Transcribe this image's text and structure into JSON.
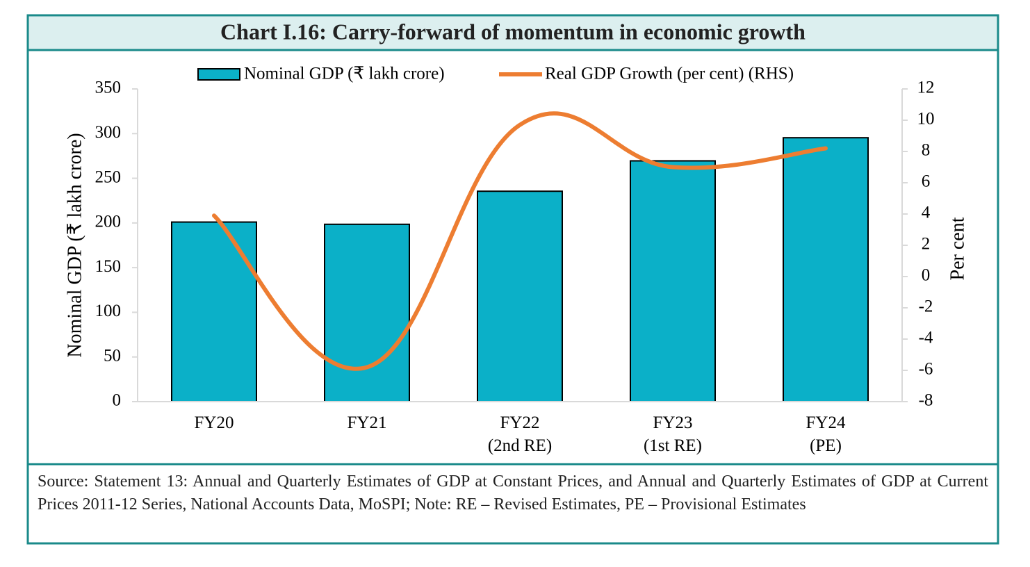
{
  "chart_data": {
    "type": "bar_line",
    "title": "Chart I.16: Carry-forward of momentum in economic growth",
    "categories": [
      "FY20",
      "FY21",
      "FY22\n(2nd RE)",
      "FY23\n(1st RE)",
      "FY24\n(PE)"
    ],
    "series": [
      {
        "name": "Nominal GDP (₹ lakh crore)",
        "type": "bar",
        "color": "#0bb0c8",
        "values": [
          201,
          198.5,
          235.5,
          269.5,
          295.4
        ]
      },
      {
        "name": "Real GDP Growth (per cent) (RHS)",
        "type": "line",
        "axis": "y2",
        "color": "#ed7d31",
        "values": [
          3.9,
          -5.8,
          9.7,
          7.0,
          8.2
        ]
      }
    ],
    "ylabel": "Nominal GDP (₹ lakh crore)",
    "y2label": "Per cent",
    "ylim": [
      0,
      350
    ],
    "yticks": [
      0,
      50,
      100,
      150,
      200,
      250,
      300,
      350
    ],
    "y2lim": [
      -8,
      12
    ],
    "y2ticks": [
      -8,
      -6,
      -4,
      -2,
      0,
      2,
      4,
      6,
      8,
      10,
      12
    ],
    "legend": "top",
    "note": "Source: Statement 13: Annual and Quarterly Estimates of GDP at Constant Prices, and Annual and Quarterly Estimates of GDP at Current Prices 2011-12 Series, National Accounts Data, MoSPI; Note: RE – Revised Estimates, PE – Provisional Estimates"
  }
}
